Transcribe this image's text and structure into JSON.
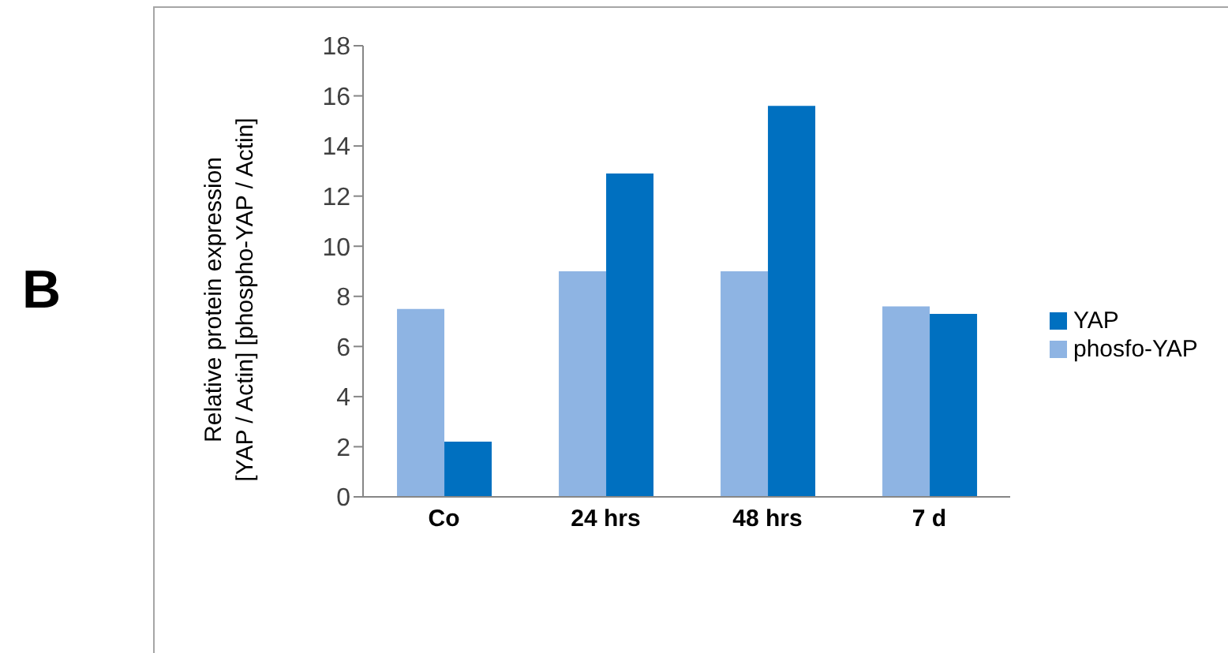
{
  "chart_data": {
    "type": "bar",
    "ylabel": "Relative protein expression\n[YAP / Actin] [phospho-YAP / Actin]",
    "annotations": [
      "B"
    ],
    "categories": [
      "Co",
      "24 hrs",
      "48 hrs",
      "7 d"
    ],
    "series": [
      {
        "name": "phosfo-YAP",
        "color": "#8eb4e3",
        "values": [
          7.5,
          9.0,
          9.0,
          7.6
        ]
      },
      {
        "name": "YAP",
        "color": "#0070c0",
        "values": [
          2.2,
          12.9,
          15.6,
          7.3
        ]
      }
    ],
    "ylim": [
      0,
      18
    ],
    "yticks": [
      0,
      2,
      4,
      6,
      8,
      10,
      12,
      14,
      16,
      18
    ],
    "grid": false,
    "legend": "right"
  }
}
